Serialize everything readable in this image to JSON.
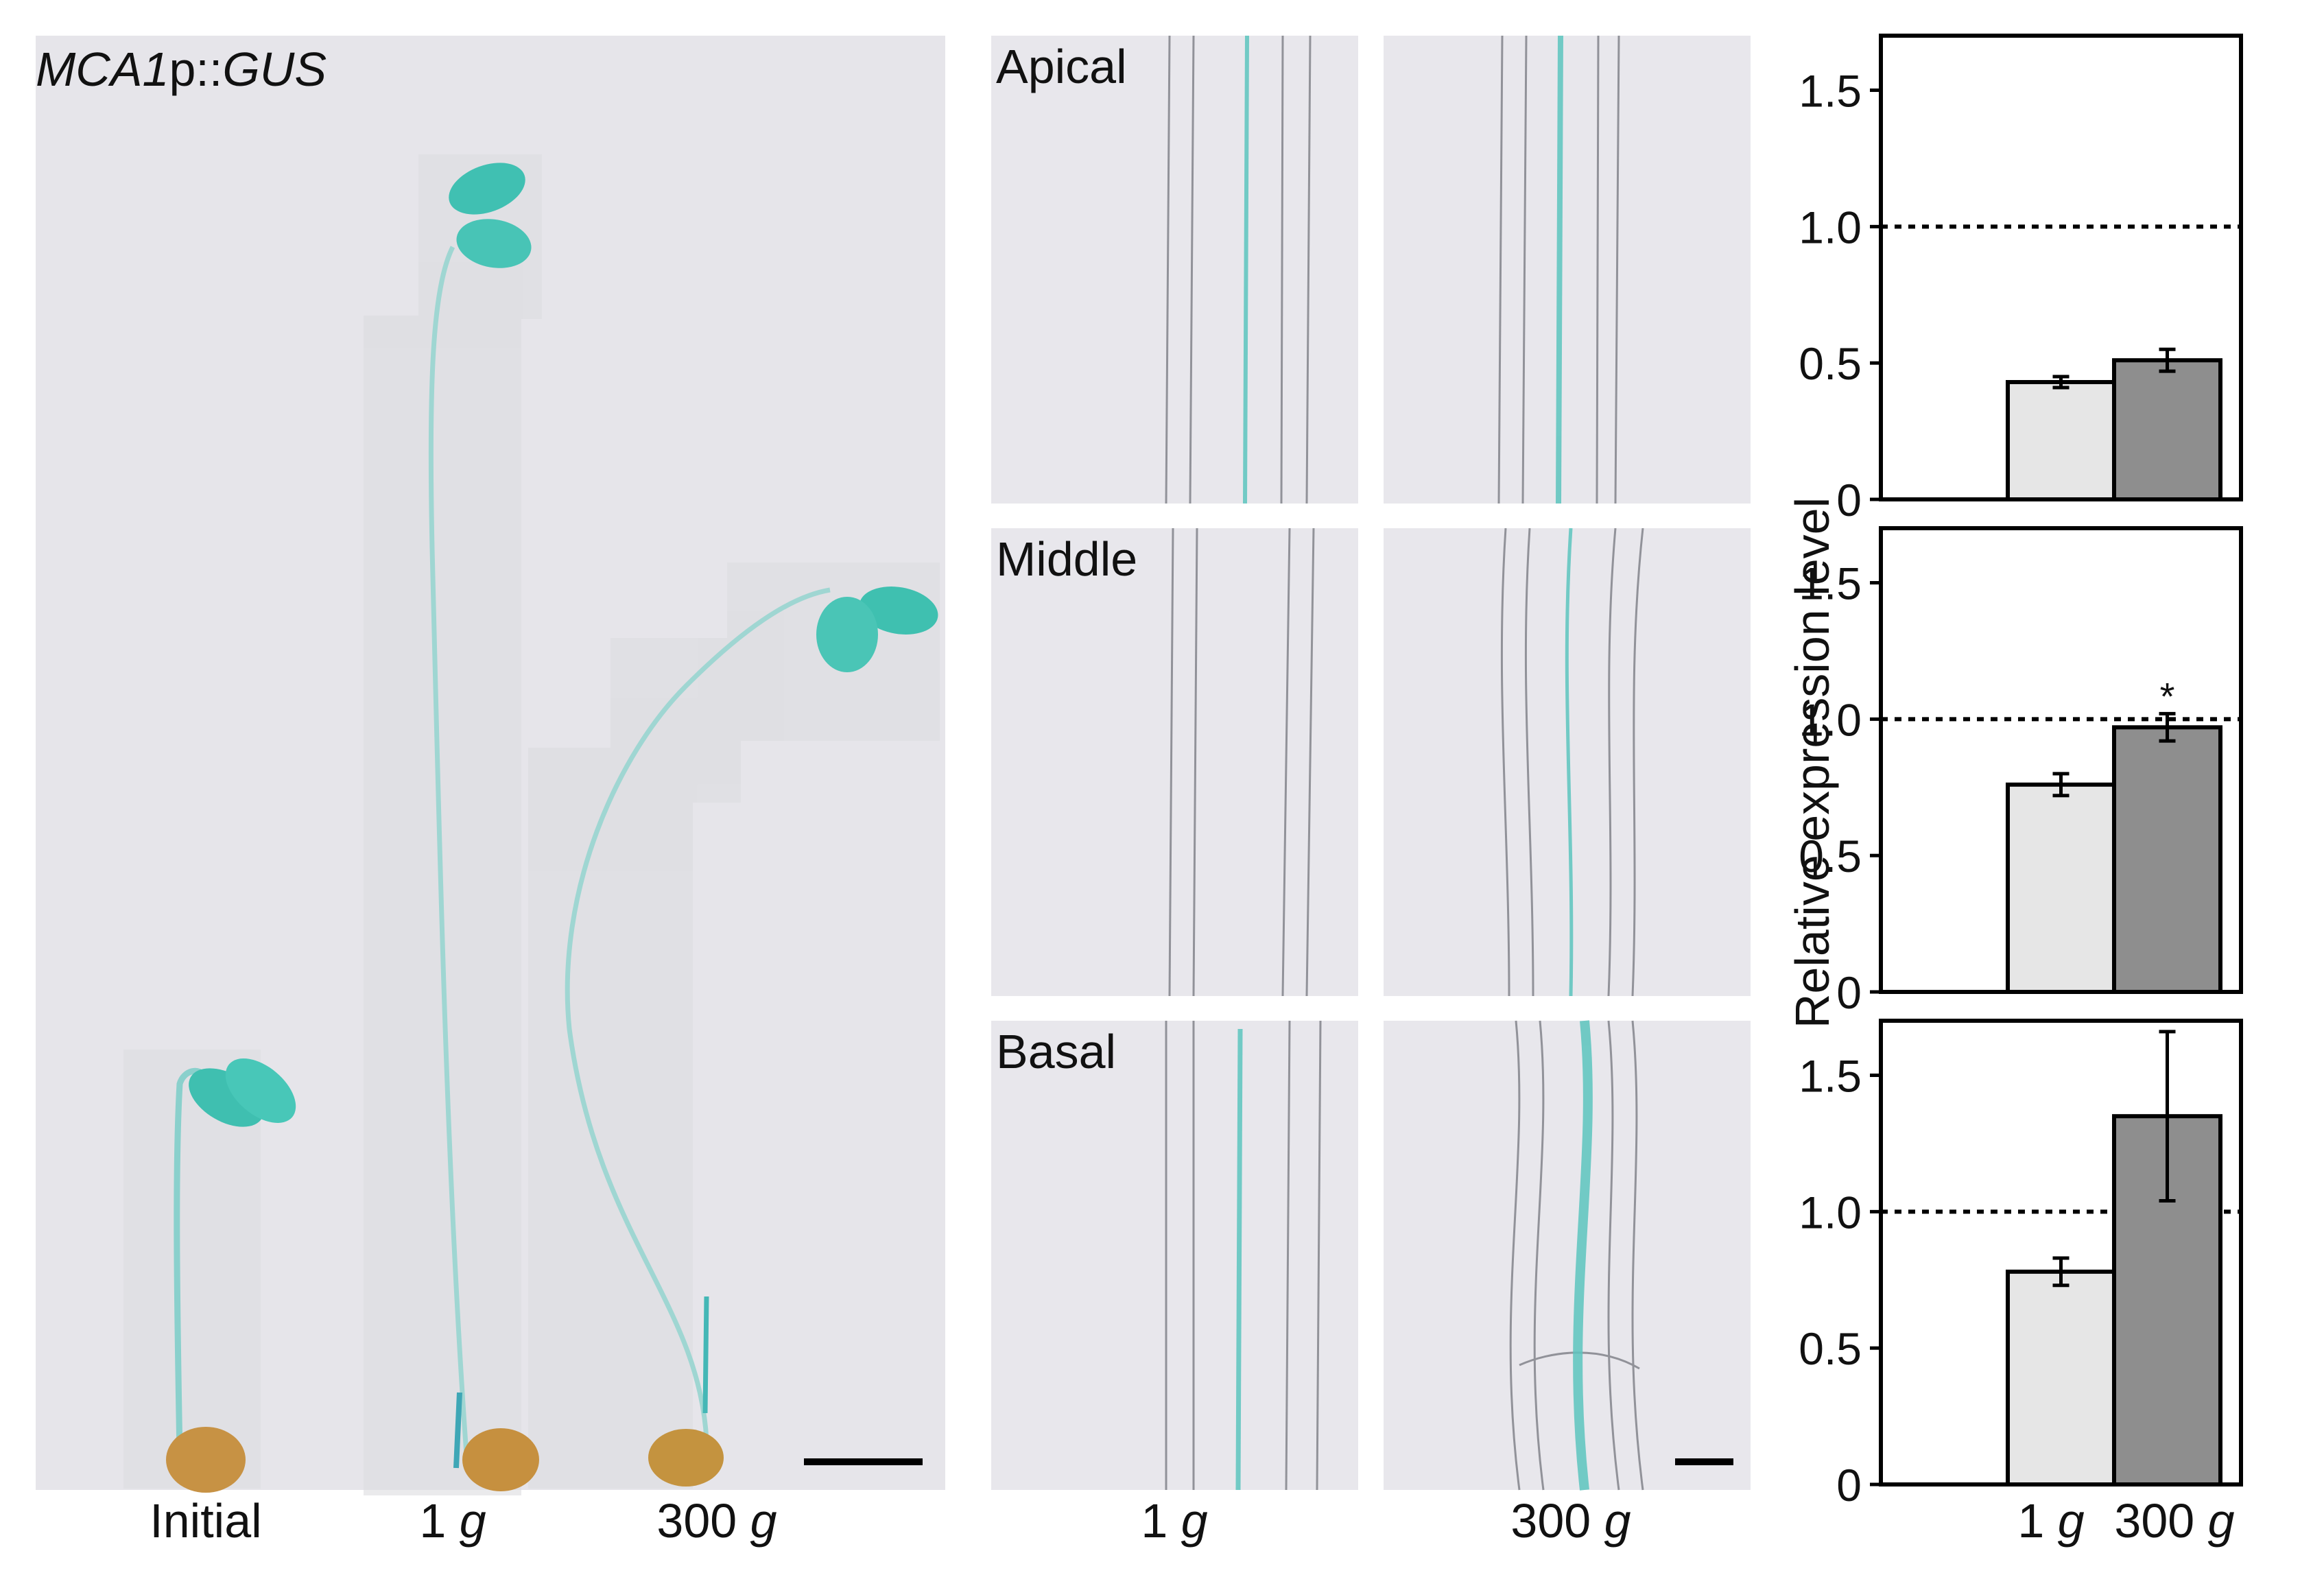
{
  "panel_a": {
    "title_gene": "MCA1",
    "title_mid": "p::",
    "title_reporter": "GUS",
    "labels": [
      {
        "num": "Initial",
        "unit": ""
      },
      {
        "num": "1 ",
        "unit": "g"
      },
      {
        "num": "300 ",
        "unit": "g"
      }
    ]
  },
  "panel_b": {
    "rows": [
      "Apical",
      "Middle",
      "Basal"
    ],
    "columns": [
      {
        "num": "1 ",
        "unit": "g"
      },
      {
        "num": "300 ",
        "unit": "g"
      }
    ]
  },
  "chart_data": {
    "type": "bar",
    "ylabel": "Relative expression level",
    "ylim": [
      0,
      1.7
    ],
    "yticks": [
      "0",
      "0.5",
      "1.0",
      "1.5"
    ],
    "reference_line": 1.0,
    "categories": [
      {
        "num": "1 ",
        "unit": "g"
      },
      {
        "num": "300 ",
        "unit": "g"
      }
    ],
    "colors": {
      "1g": "#e6e6e6",
      "300g": "#8e8e8e"
    },
    "panels": [
      {
        "values": [
          0.43,
          0.51
        ],
        "errors": [
          0.02,
          0.04
        ],
        "significance": [
          "",
          ""
        ]
      },
      {
        "values": [
          0.76,
          0.97
        ],
        "errors": [
          0.04,
          0.05
        ],
        "significance": [
          "",
          "*"
        ]
      },
      {
        "values": [
          0.78,
          1.35
        ],
        "errors": [
          0.05,
          0.31
        ],
        "significance": [
          "",
          ""
        ]
      }
    ]
  }
}
